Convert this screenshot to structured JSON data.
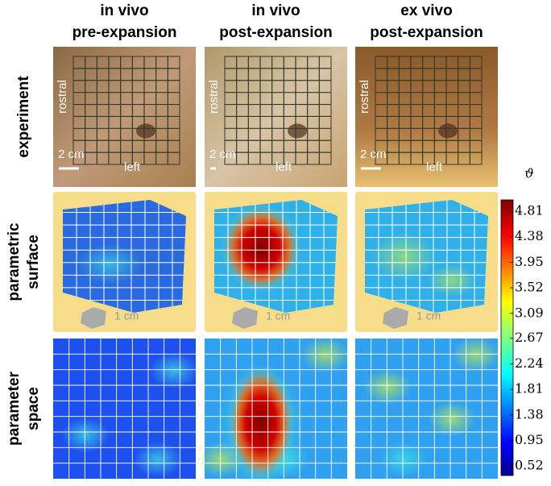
{
  "columns": [
    {
      "line1": "in vivo",
      "line2": "pre-expansion"
    },
    {
      "line1": "in vivo",
      "line2": "post-expansion"
    },
    {
      "line1": "ex vivo",
      "line2": "post-expansion"
    }
  ],
  "rows": [
    {
      "lines": [
        "experiment"
      ]
    },
    {
      "lines": [
        "parametric",
        "surface"
      ]
    },
    {
      "lines": [
        "parameter",
        "space"
      ]
    }
  ],
  "experiment_panels": [
    {
      "side": "rostral",
      "scale": "2 cm",
      "bottom": "left"
    },
    {
      "side": "rostral",
      "scale": "2 cm",
      "bottom": "left"
    },
    {
      "side": "rostral",
      "scale": "2 cm",
      "bottom": "left"
    }
  ],
  "surface_panels": [
    {
      "scale": "1 cm"
    },
    {
      "scale": "1 cm"
    },
    {
      "scale": "1 cm"
    }
  ],
  "colorbar": {
    "symbol": "ϑ",
    "lim": [
      0.36,
      5.0
    ],
    "ticks": [
      0.52,
      0.95,
      1.38,
      1.81,
      2.24,
      2.67,
      3.09,
      3.52,
      3.95,
      4.38,
      4.81
    ]
  }
}
